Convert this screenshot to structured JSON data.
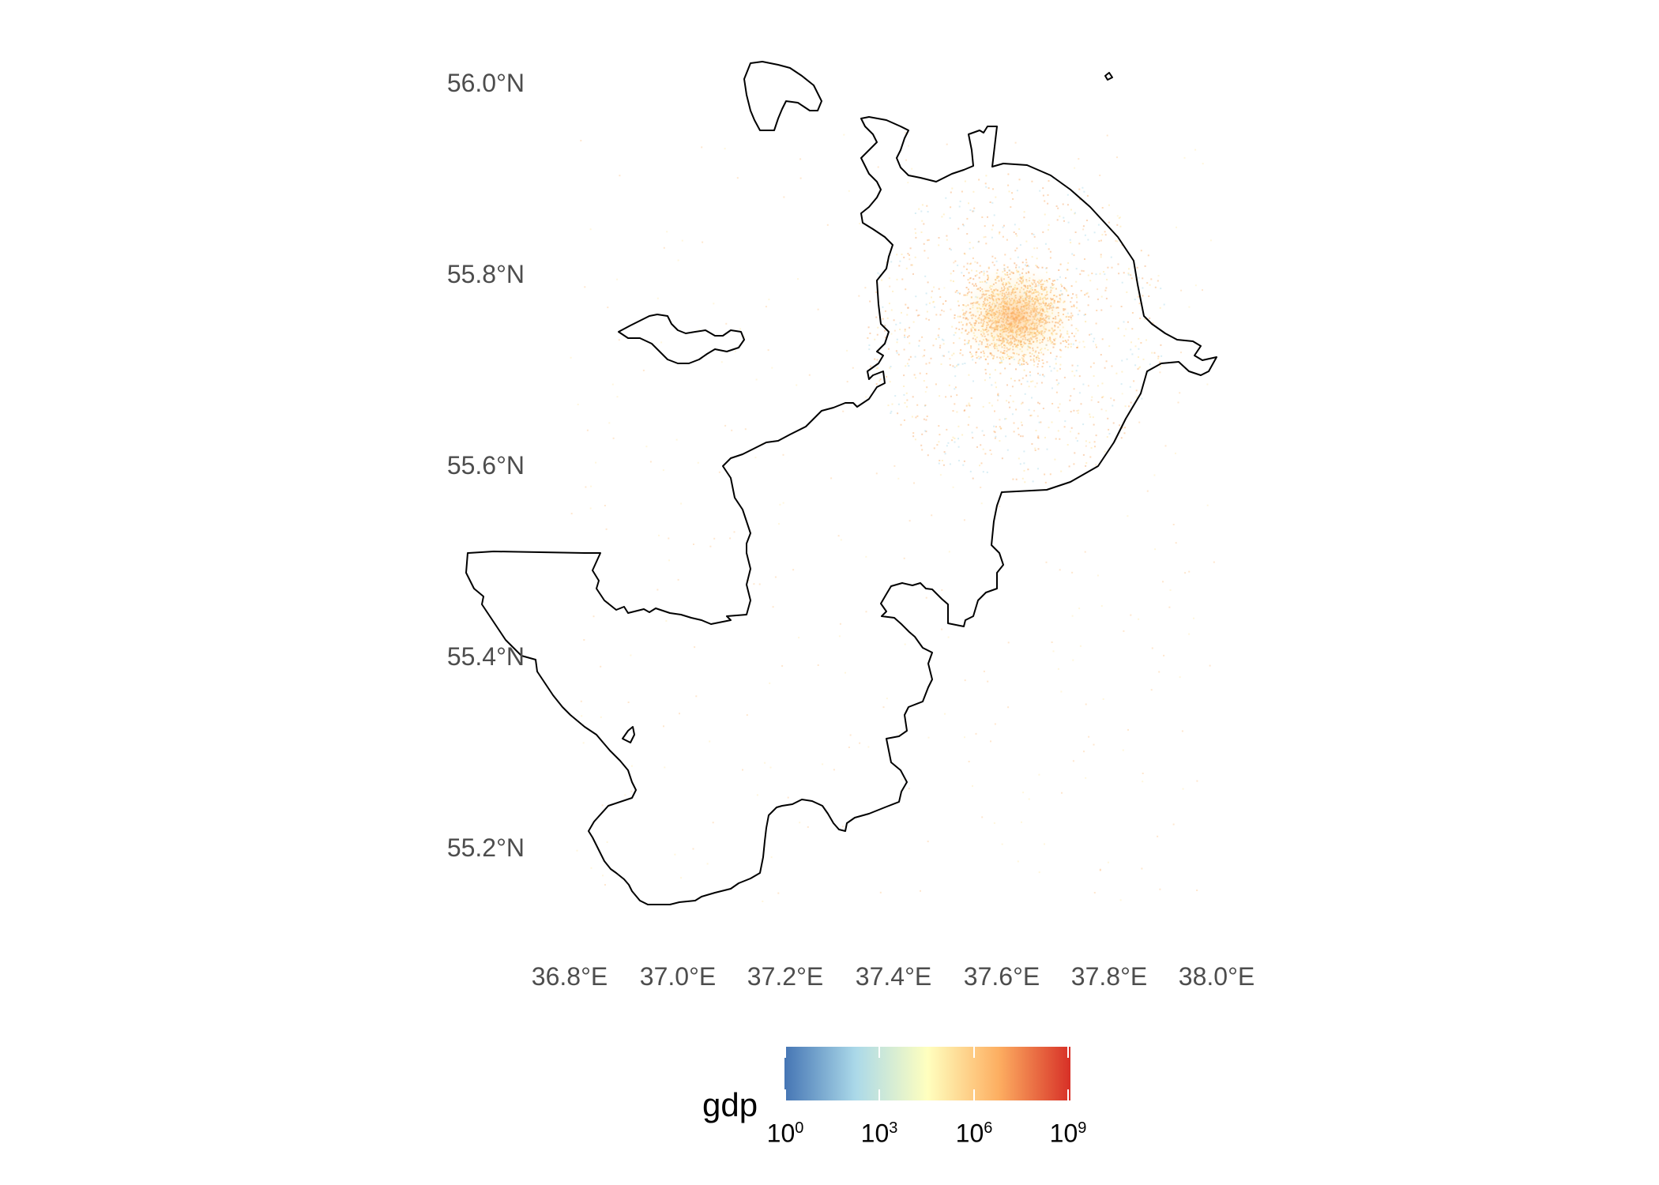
{
  "map": {
    "lat_labels": [
      "56.0°N",
      "55.8°N",
      "55.6°N",
      "55.4°N",
      "55.2°N"
    ],
    "lon_labels": [
      "36.8°E",
      "37.0°E",
      "37.2°E",
      "37.4°E",
      "37.6°E",
      "37.8°E",
      "38.0°E"
    ],
    "boundary_color": "#000000",
    "point_colors": [
      "#fdae61",
      "#fee090",
      "#f4a261",
      "#abd9e9"
    ]
  },
  "legend": {
    "title": "gdp",
    "tick_bases": [
      "10",
      "10",
      "10",
      "10"
    ],
    "tick_exponents": [
      "0",
      "3",
      "6",
      "9"
    ],
    "scale": "log10",
    "range": [
      1,
      1000000000
    ],
    "colors": [
      "#4575b4",
      "#abd9e9",
      "#ffffbf",
      "#fdae61",
      "#d73027"
    ]
  }
}
